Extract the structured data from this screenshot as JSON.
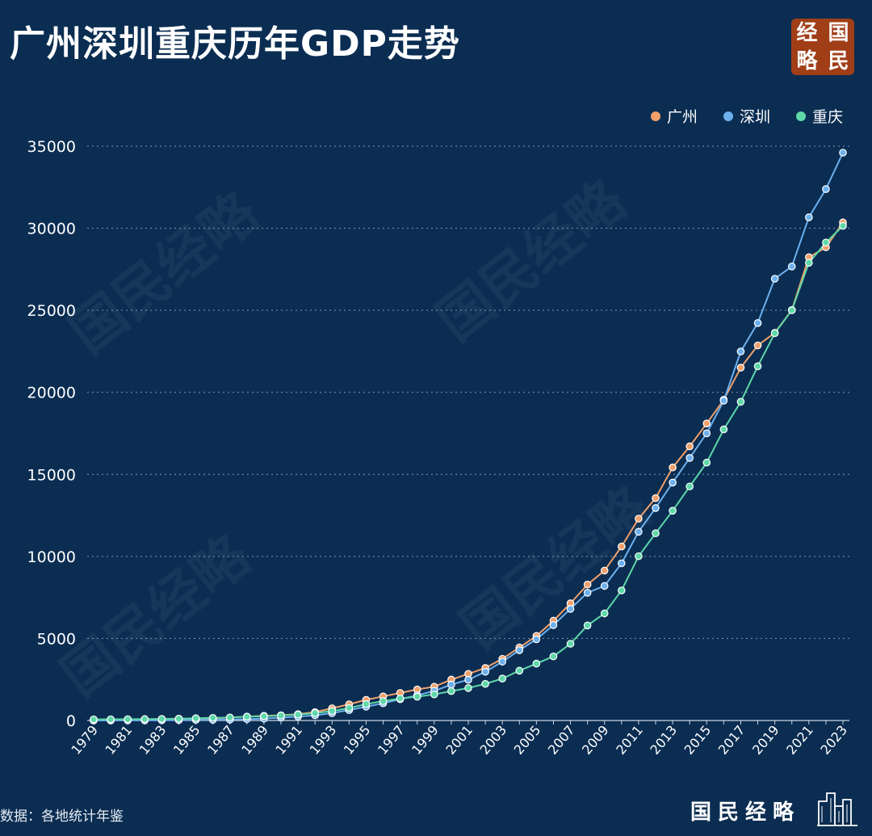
{
  "header": {
    "title": "广州深圳重庆历年GDP走势",
    "logo_chars": [
      "经",
      "国",
      "略",
      "民"
    ]
  },
  "watermark": "国民经略",
  "footer": {
    "source": "数据：各地统计年鉴",
    "brand": "国民经略"
  },
  "colors": {
    "background": "#0b2d52",
    "guangzhou": "#f0a06a",
    "shenzhen": "#6cb0ee",
    "chongqing": "#5ed8a8",
    "logo_bg": "#a03e18"
  },
  "chart_data": {
    "type": "line",
    "title": "广州深圳重庆历年GDP走势",
    "xlabel": "",
    "ylabel": "",
    "ylim": [
      0,
      35000
    ],
    "yticks": [
      0,
      5000,
      10000,
      15000,
      20000,
      25000,
      30000,
      35000
    ],
    "grid": "horizontal dotted",
    "legend_position": "top-right",
    "x": [
      1979,
      1980,
      1981,
      1982,
      1983,
      1984,
      1985,
      1986,
      1987,
      1988,
      1989,
      1990,
      1991,
      1992,
      1993,
      1994,
      1995,
      1996,
      1997,
      1998,
      1999,
      2000,
      2001,
      2002,
      2003,
      2004,
      2005,
      2006,
      2007,
      2008,
      2009,
      2010,
      2011,
      2012,
      2013,
      2014,
      2015,
      2016,
      2017,
      2018,
      2019,
      2020,
      2021,
      2022,
      2023
    ],
    "xtick_labels": [
      "1979",
      "1981",
      "1983",
      "1985",
      "1987",
      "1989",
      "1991",
      "1993",
      "1995",
      "1997",
      "1999",
      "2001",
      "2003",
      "2005",
      "2007",
      "2009",
      "2011",
      "2013",
      "2015",
      "2017",
      "2019",
      "2021",
      "2023"
    ],
    "series": [
      {
        "name": "广州",
        "color": "#f0a06a",
        "values": [
          49,
          57,
          63,
          72,
          84,
          107,
          125,
          140,
          175,
          240,
          287,
          320,
          387,
          510,
          744,
          985,
          1259,
          1468,
          1679,
          1893,
          2056,
          2493,
          2842,
          3204,
          3759,
          4450,
          5154,
          6081,
          7140,
          8287,
          9138,
          10604,
          12303,
          13551,
          15421,
          16707,
          18100,
          19547,
          21503,
          22859,
          23629,
          25019,
          28232,
          28839,
          30355
        ]
      },
      {
        "name": "深圳",
        "color": "#6cb0ee",
        "values": [
          2,
          3,
          5,
          8,
          13,
          23,
          39,
          42,
          56,
          87,
          116,
          172,
          237,
          317,
          453,
          635,
          843,
          1048,
          1297,
          1535,
          1804,
          2187,
          2482,
          2970,
          3586,
          4282,
          4951,
          5814,
          6801,
          7787,
          8201,
          9581,
          11502,
          12950,
          14500,
          16002,
          17503,
          19493,
          22490,
          24222,
          26927,
          27670,
          30665,
          32387,
          34606
        ]
      },
      {
        "name": "重庆",
        "color": "#5ed8a8",
        "values": [
          67,
          72,
          80,
          88,
          99,
          115,
          138,
          160,
          185,
          230,
          262,
          300,
          360,
          450,
          580,
          760,
          1000,
          1180,
          1340,
          1450,
          1590,
          1791,
          1977,
          2233,
          2556,
          3035,
          3468,
          3907,
          4676,
          5794,
          6528,
          7926,
          10011,
          11410,
          12784,
          14263,
          15717,
          17741,
          19425,
          21589,
          23606,
          25003,
          27894,
          29129,
          30146
        ]
      }
    ]
  }
}
